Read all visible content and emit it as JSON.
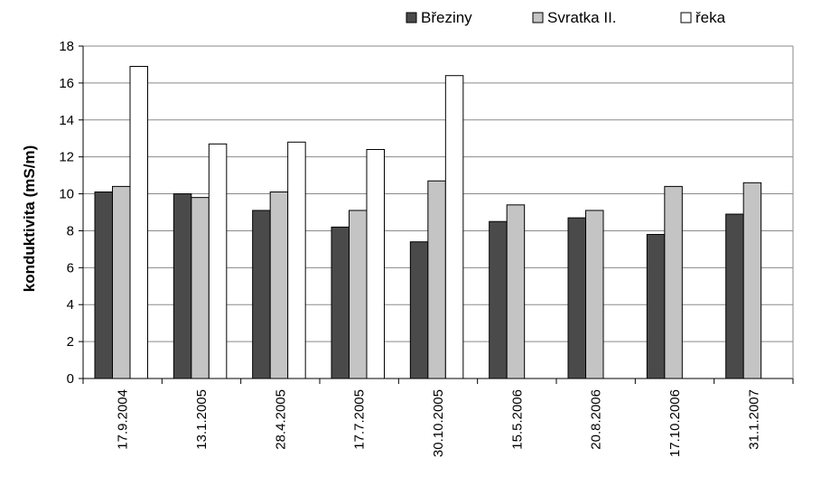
{
  "chart_data": {
    "type": "bar",
    "title": "",
    "xlabel": "",
    "ylabel": "konduktivita (mS/m)",
    "ylim": [
      0,
      18
    ],
    "yticks": [
      0,
      2,
      4,
      6,
      8,
      10,
      12,
      14,
      16,
      18
    ],
    "grid": true,
    "legend_position": "top",
    "categories": [
      "17.9.2004",
      "13.1.2005",
      "28.4.2005",
      "17.7.2005",
      "30.10.2005",
      "15.5.2006",
      "20.8.2006",
      "17.10.2006",
      "31.1.2007"
    ],
    "series": [
      {
        "name": "Březiny",
        "color": "#4a4a4a",
        "values": [
          10.1,
          10.0,
          9.1,
          8.2,
          7.4,
          8.5,
          8.7,
          7.8,
          8.9
        ]
      },
      {
        "name": "Svratka II.",
        "color": "#c4c4c4",
        "values": [
          10.4,
          9.8,
          10.1,
          9.1,
          10.7,
          9.4,
          9.1,
          10.4,
          10.6
        ]
      },
      {
        "name": "řeka",
        "color": "#ffffff",
        "values": [
          16.9,
          12.7,
          12.8,
          12.4,
          16.4,
          null,
          null,
          null,
          null
        ]
      }
    ]
  }
}
